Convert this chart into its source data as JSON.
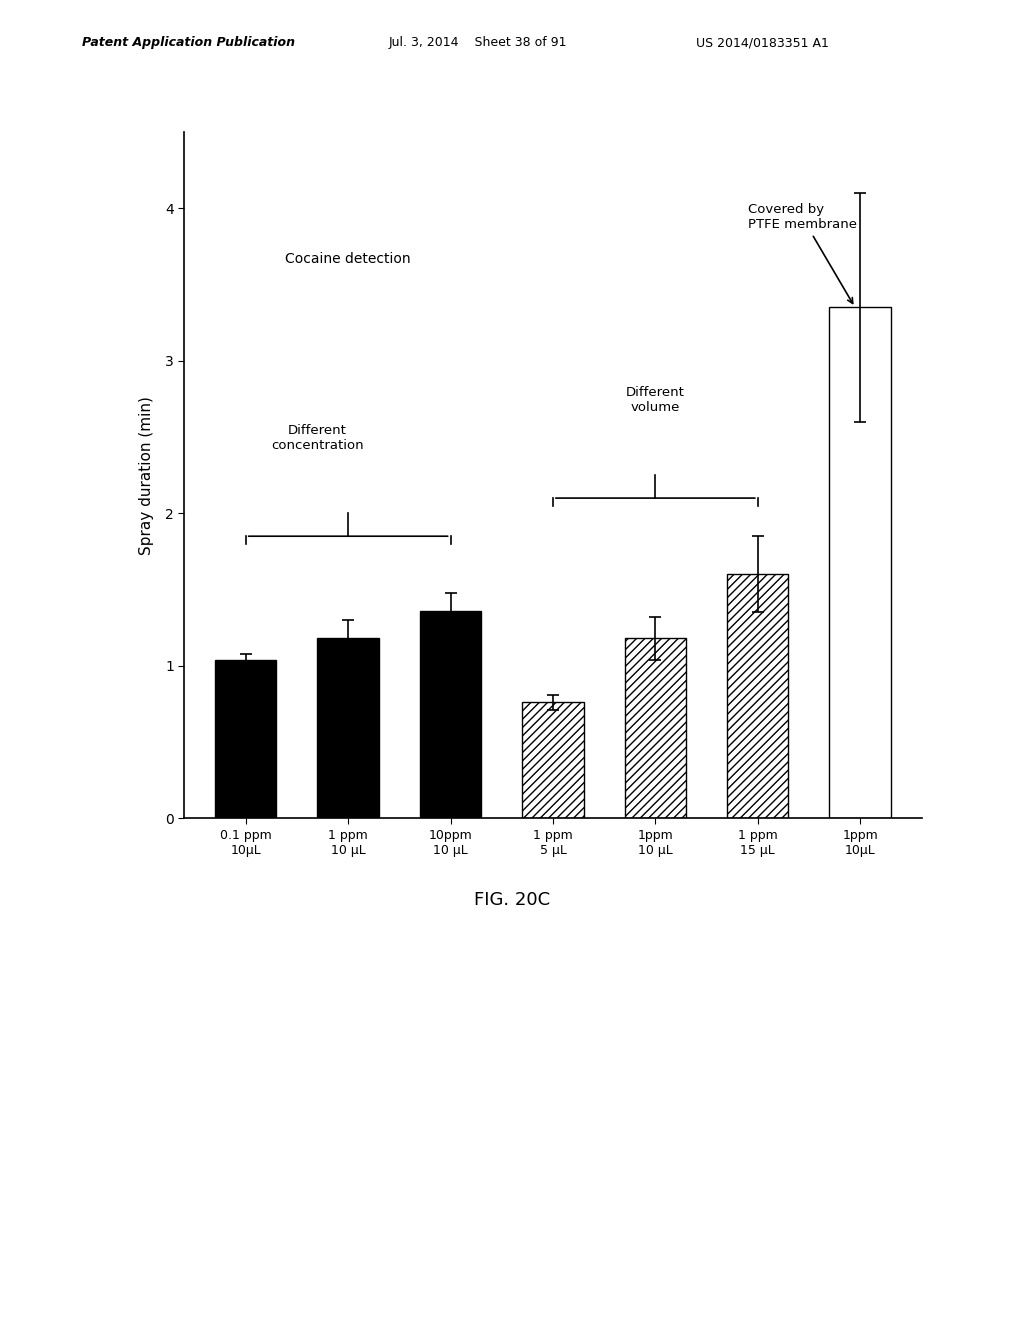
{
  "bars": [
    {
      "label": "0.1 ppm\n10μL",
      "value": 1.04,
      "err": 0.04,
      "style": "black"
    },
    {
      "label": "1 ppm\n10 μL",
      "value": 1.18,
      "err": 0.12,
      "style": "black"
    },
    {
      "label": "10ppm\n10 μL",
      "value": 1.36,
      "err": 0.12,
      "style": "black"
    },
    {
      "label": "1 ppm\n5 μL",
      "value": 0.76,
      "err": 0.05,
      "style": "hatch"
    },
    {
      "label": "1ppm\n10 μL",
      "value": 1.18,
      "err": 0.14,
      "style": "hatch"
    },
    {
      "label": "1 ppm\n15 μL",
      "value": 1.6,
      "err": 0.25,
      "style": "hatch"
    },
    {
      "label": "1ppm\n10μL",
      "value": 3.35,
      "err": 0.75,
      "style": "white"
    }
  ],
  "ylabel": "Spray duration (min)",
  "ylim": [
    0,
    4.5
  ],
  "yticks": [
    0,
    1,
    2,
    3,
    4
  ],
  "annotation_cocaine": "Cocaine detection",
  "annotation_diff_conc": "Different\nconcentration",
  "annotation_diff_vol": "Different\nvolume",
  "annotation_ptfe": "Covered by\nPTFE membrane",
  "figure_label": "FIG. 20C",
  "header_left": "Patent Application Publication",
  "header_mid": "Jul. 3, 2014    Sheet 38 of 91",
  "header_right": "US 2014/0183351 A1",
  "background_color": "#ffffff",
  "bar_width": 0.6
}
